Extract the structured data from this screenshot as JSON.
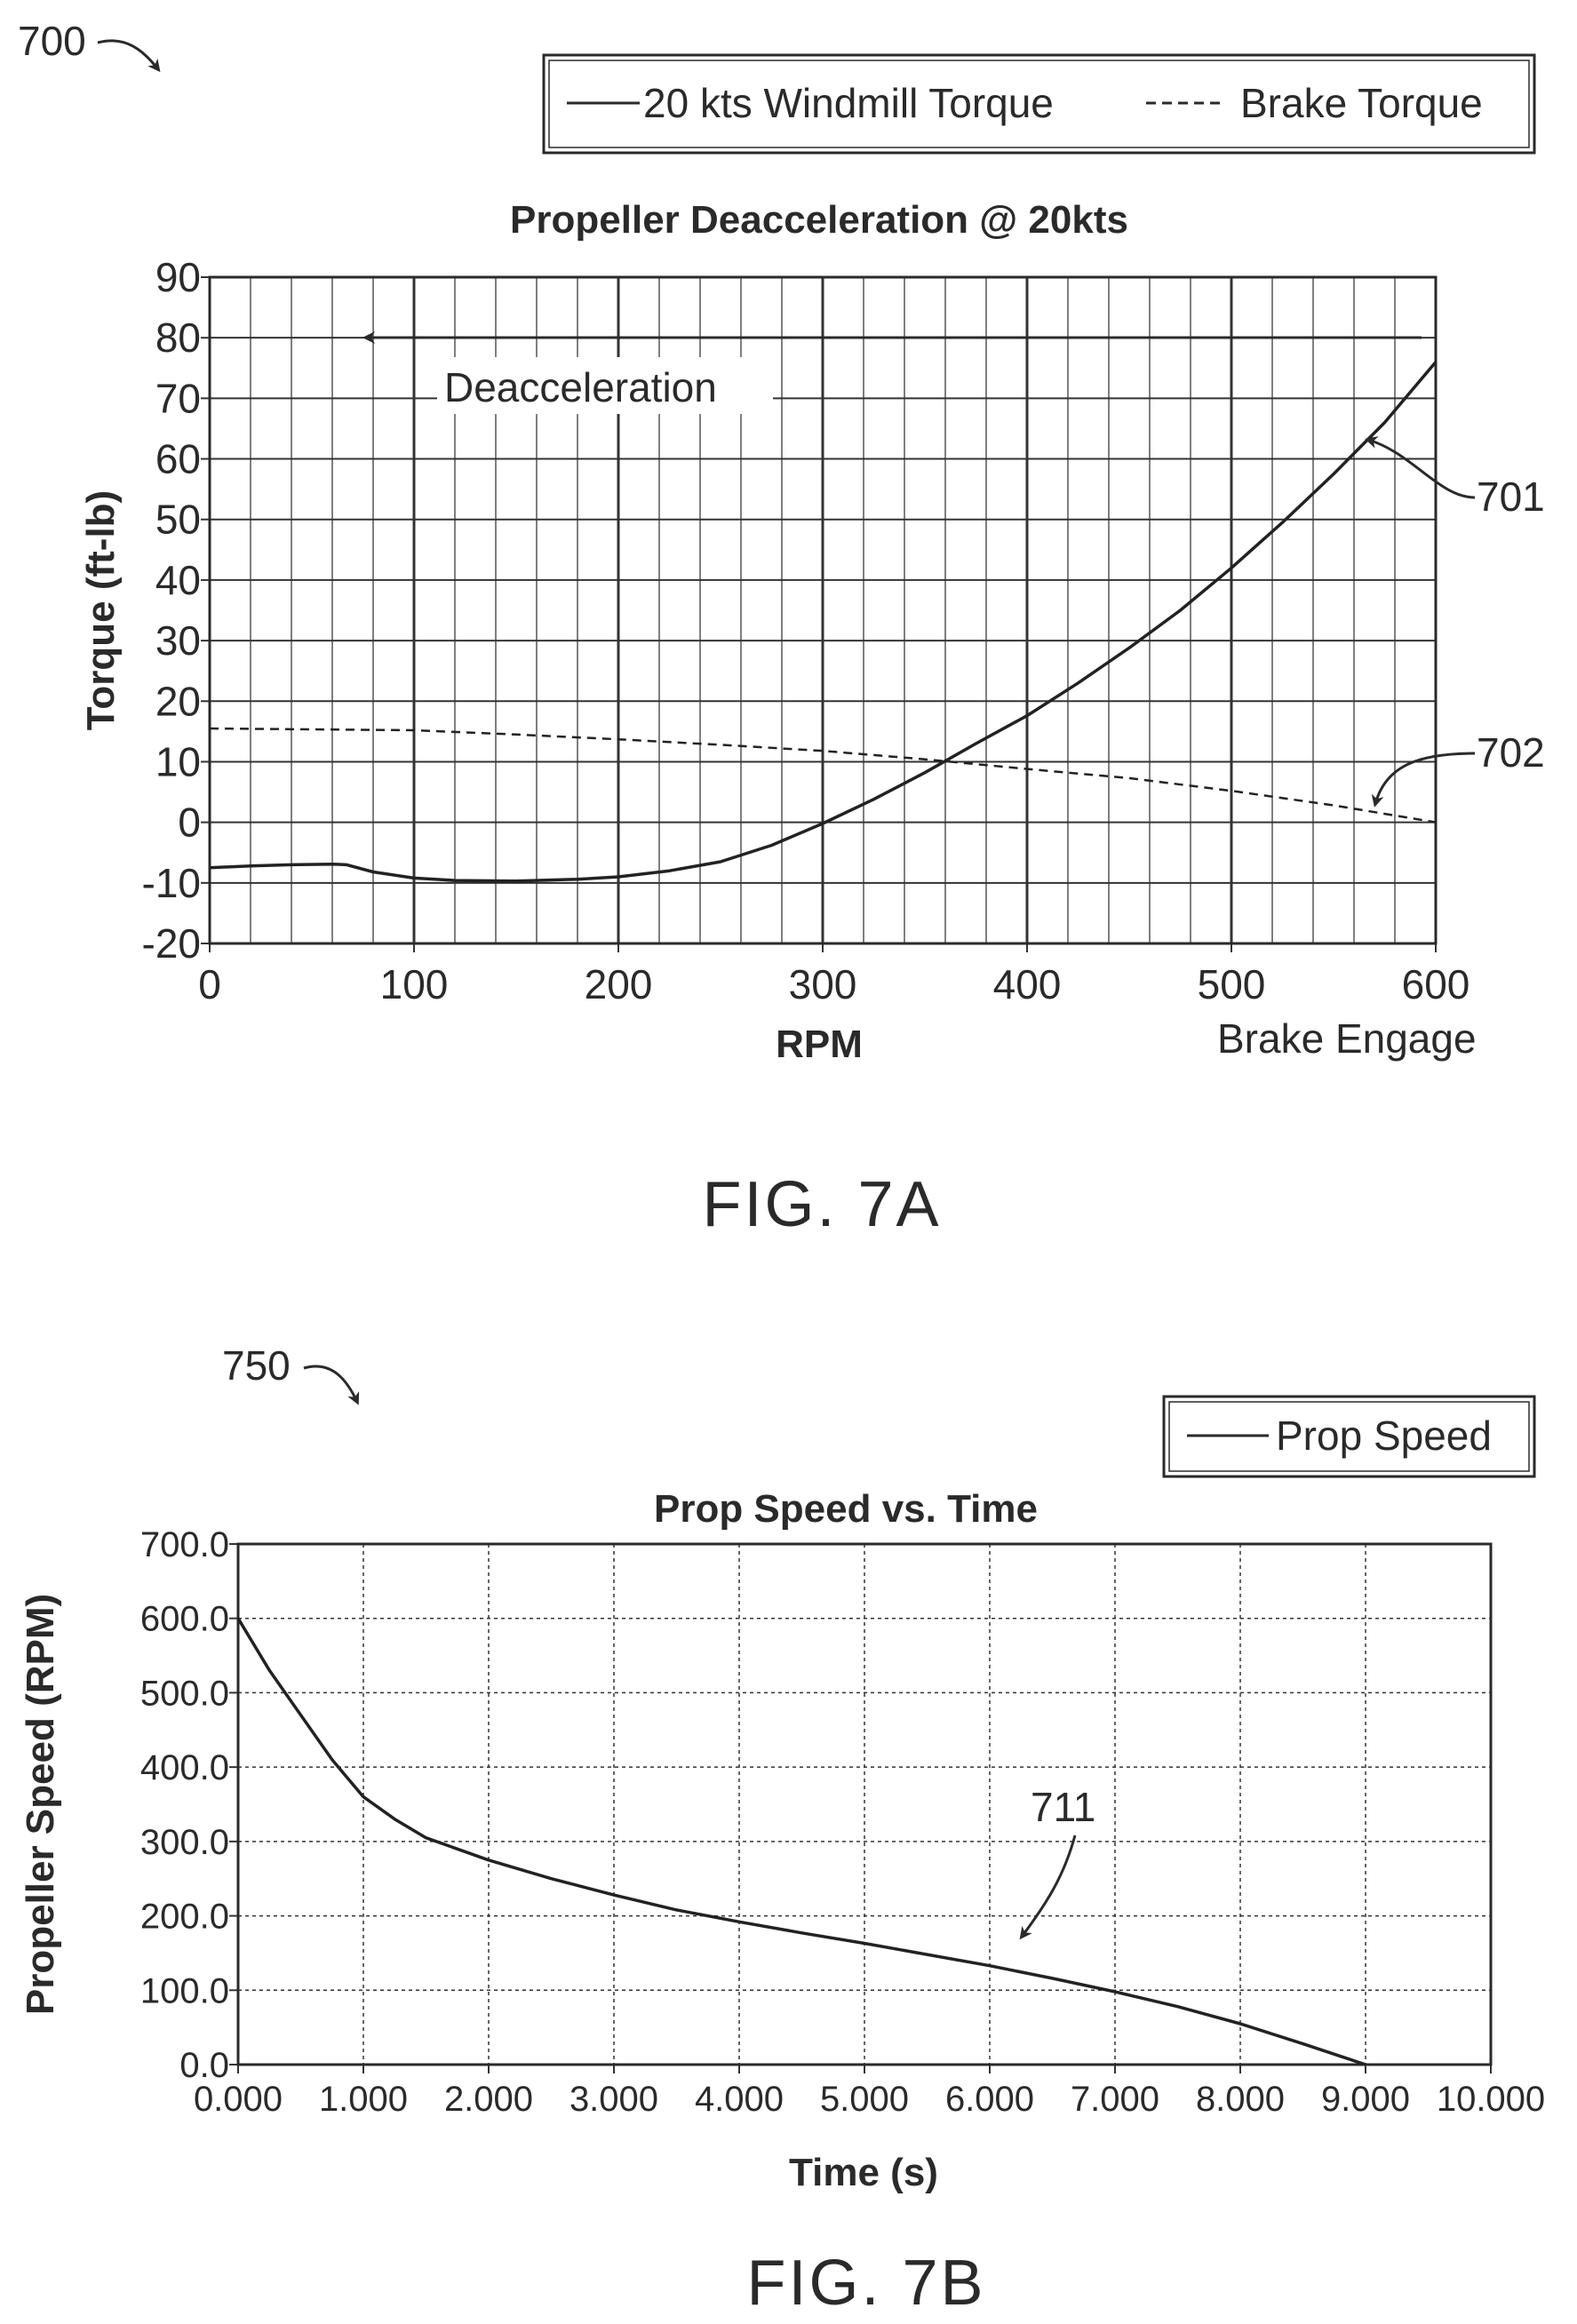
{
  "figure_7a": {
    "ref_number": "700",
    "caption": "FIG. 7A",
    "legend": {
      "solid_label": "20 kts Windmill Torque",
      "dashed_label": "Brake Torque"
    },
    "callouts": {
      "deacceleration": "Deacceleration",
      "brake_engage": "Brake Engage",
      "curve_701": "701",
      "curve_702": "702"
    }
  },
  "figure_7b": {
    "ref_number": "750",
    "caption": "FIG. 7B",
    "legend": {
      "solid_label": "Prop Speed"
    },
    "callouts": {
      "curve_711": "711"
    }
  },
  "chart_data": [
    {
      "type": "line",
      "title": "Propeller Deacceleration @ 20kts",
      "xlabel": "RPM",
      "ylabel": "Torque (ft-lb)",
      "xlim": [
        0,
        600
      ],
      "ylim": [
        -20,
        90
      ],
      "x_ticks": [
        "0",
        "100",
        "200",
        "300",
        "400",
        "500",
        "600"
      ],
      "y_ticks": [
        "-20",
        "-10",
        "0",
        "10",
        "20",
        "30",
        "40",
        "50",
        "60",
        "70",
        "80",
        "90"
      ],
      "grid": true,
      "legend_position": "top-right",
      "series": [
        {
          "name": "20 kts Windmill Torque",
          "style": "solid",
          "points": [
            [
              0,
              -7.5
            ],
            [
              20,
              -7.2
            ],
            [
              40,
              -7.0
            ],
            [
              60,
              -6.9
            ],
            [
              67,
              -7.0
            ],
            [
              80,
              -8.2
            ],
            [
              100,
              -9.2
            ],
            [
              120,
              -9.6
            ],
            [
              150,
              -9.7
            ],
            [
              180,
              -9.4
            ],
            [
              200,
              -9.0
            ],
            [
              225,
              -8.0
            ],
            [
              250,
              -6.5
            ],
            [
              275,
              -3.8
            ],
            [
              300,
              -0.2
            ],
            [
              325,
              3.8
            ],
            [
              350,
              8.2
            ],
            [
              375,
              13.0
            ],
            [
              400,
              17.6
            ],
            [
              425,
              23.0
            ],
            [
              450,
              28.8
            ],
            [
              475,
              35.0
            ],
            [
              500,
              42.0
            ],
            [
              525,
              49.5
            ],
            [
              550,
              57.5
            ],
            [
              575,
              66.0
            ],
            [
              600,
              76.0
            ]
          ]
        },
        {
          "name": "Brake Torque",
          "style": "dashed",
          "points": [
            [
              0,
              15.5
            ],
            [
              100,
              15.2
            ],
            [
              150,
              14.5
            ],
            [
              200,
              13.7
            ],
            [
              250,
              12.8
            ],
            [
              300,
              11.8
            ],
            [
              350,
              10.4
            ],
            [
              400,
              8.8
            ],
            [
              450,
              7.3
            ],
            [
              500,
              5.2
            ],
            [
              550,
              2.8
            ],
            [
              600,
              0.0
            ]
          ]
        }
      ]
    },
    {
      "type": "line",
      "title": "Prop Speed vs. Time",
      "xlabel": "Time (s)",
      "ylabel": "Propeller Speed (RPM)",
      "xlim": [
        0,
        10
      ],
      "ylim": [
        0,
        700
      ],
      "x_ticks": [
        "0.000",
        "1.000",
        "2.000",
        "3.000",
        "4.000",
        "5.000",
        "6.000",
        "7.000",
        "8.000",
        "9.000",
        "10.000"
      ],
      "y_ticks": [
        "0.0",
        "100.0",
        "200.0",
        "300.0",
        "400.0",
        "500.0",
        "600.0",
        "700.0"
      ],
      "grid": true,
      "legend_position": "top-right",
      "series": [
        {
          "name": "Prop Speed",
          "style": "solid",
          "points": [
            [
              0,
              600
            ],
            [
              0.25,
              530
            ],
            [
              0.5,
              470
            ],
            [
              0.75,
              410
            ],
            [
              1.0,
              360
            ],
            [
              1.25,
              330
            ],
            [
              1.5,
              305
            ],
            [
              2.0,
              275
            ],
            [
              2.5,
              250
            ],
            [
              3.0,
              228
            ],
            [
              3.5,
              208
            ],
            [
              4.0,
              192
            ],
            [
              4.5,
              177
            ],
            [
              5.0,
              163
            ],
            [
              5.5,
              148
            ],
            [
              6.0,
              133
            ],
            [
              6.5,
              116
            ],
            [
              7.0,
              98
            ],
            [
              7.5,
              78
            ],
            [
              8.0,
              55
            ],
            [
              8.5,
              28
            ],
            [
              9.0,
              0
            ]
          ]
        }
      ]
    }
  ]
}
